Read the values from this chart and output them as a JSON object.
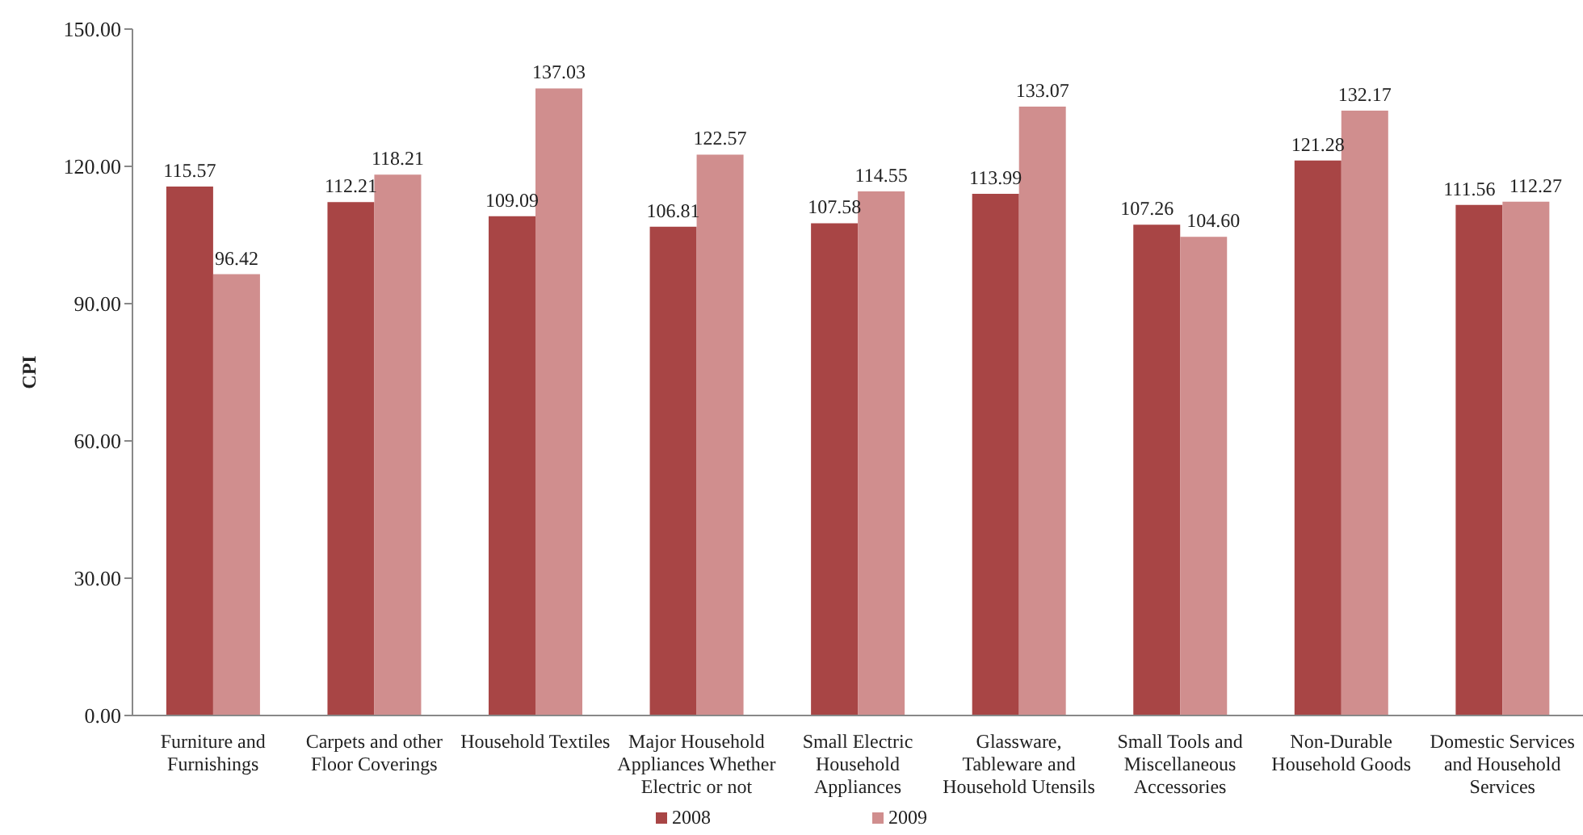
{
  "chart_data": {
    "type": "bar",
    "ylabel": "CPI",
    "categories": [
      "Furniture and Furnishings",
      "Carpets and other Floor Coverings",
      "Household Textiles",
      "Major Household Appliances Whether Electric or not",
      "Small Electric Household Appliances",
      "Glassware, Tableware and Household Utensils",
      "Small Tools and Miscellaneous Accessories",
      "Non-Durable Household Goods",
      "Domestic Services and Household Services"
    ],
    "series": [
      {
        "name": "2008",
        "color": "#a84545",
        "values": [
          115.57,
          112.21,
          109.09,
          106.81,
          107.58,
          113.99,
          107.26,
          121.28,
          111.56
        ],
        "value_labels": [
          "115.57",
          "112.21",
          "109.09",
          "106.81",
          "107.58",
          "113.99",
          "107.26",
          "121.28",
          "111.56"
        ]
      },
      {
        "name": "2009",
        "color": "#d08e8e",
        "values": [
          96.42,
          118.21,
          137.03,
          122.57,
          114.55,
          133.07,
          104.6,
          132.17,
          112.27
        ],
        "value_labels": [
          "96.42",
          "118.21",
          "137.03",
          "122.57",
          "114.55",
          "133.07",
          "104.60",
          "132.17",
          "112.27"
        ]
      }
    ],
    "ylim": [
      0,
      150
    ],
    "yticks": [
      {
        "value": 0,
        "label": "0.00"
      },
      {
        "value": 30,
        "label": "30.00"
      },
      {
        "value": 60,
        "label": "60.00"
      },
      {
        "value": 90,
        "label": "90.00"
      },
      {
        "value": 120,
        "label": "120.00"
      },
      {
        "value": 150,
        "label": "150.00"
      }
    ],
    "legend": "bottom"
  }
}
